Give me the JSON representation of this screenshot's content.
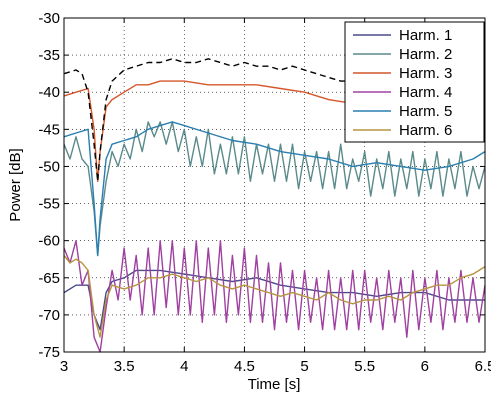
{
  "chart_data": {
    "type": "line",
    "title": "",
    "xlabel": "Time [s]",
    "ylabel": "Power [dB]",
    "xlim": [
      3,
      6.5
    ],
    "ylim": [
      -75,
      -30
    ],
    "xticks": [
      3,
      3.5,
      4,
      4.5,
      5,
      5.5,
      6,
      6.5
    ],
    "xtick_labels": [
      "3",
      "3.5",
      "4",
      "4.5",
      "5",
      "5.5",
      "6",
      "6.5"
    ],
    "yticks": [
      -30,
      -35,
      -40,
      -45,
      -50,
      -55,
      -60,
      -65,
      -70,
      -75
    ],
    "ytick_labels": [
      "-30",
      "-35",
      "-40",
      "-45",
      "-50",
      "-55",
      "-60",
      "-65",
      "-70",
      "-75"
    ],
    "grid": true,
    "legend_position": "top-right",
    "series": [
      {
        "name": "Harm. 1",
        "color": "#4a4a8c",
        "dashed": false,
        "x": [
          3.0,
          3.1,
          3.2,
          3.25,
          3.3,
          3.35,
          3.4,
          3.5,
          3.6,
          3.8,
          4.0,
          4.2,
          4.4,
          4.6,
          4.8,
          5.0,
          5.2,
          5.4,
          5.6,
          5.8,
          6.0,
          6.2,
          6.4,
          6.5
        ],
        "y": [
          -67,
          -66,
          -66,
          -70,
          -72,
          -67,
          -65.5,
          -65,
          -64,
          -64,
          -64.5,
          -65,
          -65.5,
          -65,
          -66,
          -66.5,
          -67,
          -67,
          -67.5,
          -67,
          -67,
          -68,
          -68,
          -68
        ]
      },
      {
        "name": "Harm. 2",
        "color": "#5a8a8a",
        "dashed": false,
        "x": [
          3.0,
          3.05,
          3.1,
          3.15,
          3.2,
          3.25,
          3.28,
          3.3,
          3.35,
          3.4,
          3.45,
          3.5,
          3.55,
          3.6,
          3.65,
          3.7,
          3.75,
          3.8,
          3.85,
          3.9,
          3.95,
          4.0,
          4.05,
          4.1,
          4.15,
          4.2,
          4.25,
          4.3,
          4.35,
          4.4,
          4.45,
          4.5,
          4.55,
          4.6,
          4.65,
          4.7,
          4.75,
          4.8,
          4.85,
          4.9,
          4.95,
          5.0,
          5.05,
          5.1,
          5.15,
          5.2,
          5.25,
          5.3,
          5.35,
          5.4,
          5.45,
          5.5,
          5.55,
          5.6,
          5.65,
          5.7,
          5.75,
          5.8,
          5.85,
          5.9,
          5.95,
          6.0,
          6.05,
          6.1,
          6.15,
          6.2,
          6.25,
          6.3,
          6.35,
          6.4,
          6.45,
          6.5
        ],
        "y": [
          -47,
          -49,
          -46,
          -49,
          -50,
          -56,
          -62,
          -58,
          -52,
          -48,
          -50,
          -47,
          -49,
          -45,
          -48,
          -44,
          -46,
          -44,
          -47,
          -44,
          -48,
          -45,
          -50,
          -46,
          -50,
          -45,
          -51,
          -47,
          -51,
          -46,
          -51,
          -46,
          -52,
          -47,
          -51,
          -47,
          -52,
          -47,
          -52,
          -47,
          -53,
          -48,
          -52,
          -48,
          -53,
          -48,
          -53,
          -47,
          -53,
          -49,
          -52,
          -48,
          -54,
          -49,
          -53,
          -48,
          -54,
          -49,
          -53,
          -48,
          -54,
          -49,
          -53,
          -48,
          -54,
          -49,
          -53,
          -48,
          -54,
          -50,
          -53,
          -50
        ]
      },
      {
        "name": "Harm. 3",
        "color": "#d4572a",
        "dashed": false,
        "x": [
          3.0,
          3.1,
          3.2,
          3.25,
          3.28,
          3.3,
          3.35,
          3.4,
          3.5,
          3.6,
          3.7,
          3.8,
          3.9,
          4.0,
          4.2,
          4.4,
          4.6,
          4.8,
          5.0,
          5.2,
          5.4,
          5.6,
          5.8,
          6.0,
          6.2,
          6.4,
          6.5
        ],
        "y": [
          -40.5,
          -40,
          -39.5,
          -45,
          -52,
          -48,
          -42,
          -41,
          -40,
          -39,
          -39,
          -38.5,
          -38.5,
          -38.5,
          -39,
          -39,
          -39,
          -39.5,
          -40,
          -41,
          -41.5,
          -42,
          -42.5,
          -42.5,
          -43,
          -43.5,
          -43
        ]
      },
      {
        "name": "Harm. 4",
        "color": "#a040a0",
        "dashed": false,
        "x": [
          3.0,
          3.05,
          3.1,
          3.15,
          3.2,
          3.25,
          3.3,
          3.35,
          3.4,
          3.45,
          3.5,
          3.55,
          3.6,
          3.65,
          3.7,
          3.75,
          3.8,
          3.85,
          3.9,
          3.95,
          4.0,
          4.05,
          4.1,
          4.15,
          4.2,
          4.25,
          4.3,
          4.35,
          4.4,
          4.45,
          4.5,
          4.55,
          4.6,
          4.65,
          4.7,
          4.75,
          4.8,
          4.85,
          4.9,
          4.95,
          5.0,
          5.05,
          5.1,
          5.15,
          5.2,
          5.25,
          5.3,
          5.35,
          5.4,
          5.45,
          5.5,
          5.55,
          5.6,
          5.65,
          5.7,
          5.75,
          5.8,
          5.85,
          5.9,
          5.95,
          6.0,
          6.05,
          6.1,
          6.15,
          6.2,
          6.25,
          6.3,
          6.35,
          6.4,
          6.45,
          6.5
        ],
        "y": [
          -61,
          -63,
          -60,
          -66,
          -64,
          -73,
          -75,
          -69,
          -64,
          -68,
          -61,
          -68,
          -62,
          -70,
          -61,
          -70,
          -60,
          -69,
          -60,
          -70,
          -61,
          -70,
          -60,
          -71,
          -61,
          -70,
          -60,
          -71,
          -62,
          -70,
          -61,
          -71,
          -62,
          -71,
          -63,
          -72,
          -63,
          -71,
          -64,
          -72,
          -64,
          -71,
          -65,
          -72,
          -64,
          -72,
          -65,
          -72,
          -64,
          -72,
          -64,
          -71,
          -65,
          -72,
          -64,
          -71,
          -65,
          -73,
          -64,
          -72,
          -65,
          -71,
          -64,
          -72,
          -65,
          -71,
          -64,
          -71,
          -65,
          -71,
          -66
        ]
      },
      {
        "name": "Harm. 5",
        "color": "#2a7fb0",
        "dashed": false,
        "x": [
          3.0,
          3.1,
          3.2,
          3.25,
          3.28,
          3.3,
          3.35,
          3.4,
          3.5,
          3.6,
          3.7,
          3.8,
          3.9,
          4.0,
          4.2,
          4.4,
          4.6,
          4.8,
          5.0,
          5.2,
          5.4,
          5.6,
          5.8,
          6.0,
          6.2,
          6.4,
          6.5
        ],
        "y": [
          -46,
          -45.5,
          -45,
          -55,
          -62,
          -57,
          -49,
          -47,
          -46.5,
          -46,
          -45,
          -44.5,
          -44,
          -44.5,
          -45.5,
          -46.5,
          -47,
          -48,
          -48.5,
          -49,
          -50,
          -49.5,
          -50,
          -50.5,
          -50,
          -49,
          -48
        ]
      },
      {
        "name": "Harm. 6",
        "color": "#b89440",
        "dashed": false,
        "x": [
          3.0,
          3.05,
          3.1,
          3.15,
          3.2,
          3.25,
          3.3,
          3.35,
          3.4,
          3.5,
          3.6,
          3.7,
          3.8,
          3.9,
          4.0,
          4.1,
          4.2,
          4.3,
          4.4,
          4.5,
          4.6,
          4.7,
          4.8,
          4.9,
          5.0,
          5.1,
          5.2,
          5.3,
          5.4,
          5.5,
          5.6,
          5.7,
          5.8,
          5.9,
          6.0,
          6.1,
          6.2,
          6.3,
          6.4,
          6.5
        ],
        "y": [
          -62,
          -63,
          -62.5,
          -63,
          -64,
          -70,
          -73,
          -68,
          -66,
          -66.5,
          -66,
          -65,
          -65,
          -64.5,
          -65,
          -65.5,
          -65,
          -66,
          -66.5,
          -66,
          -66.5,
          -67,
          -67.5,
          -67,
          -67.5,
          -68,
          -67,
          -68,
          -68.5,
          -68,
          -68,
          -67.5,
          -68,
          -67,
          -66.5,
          -66,
          -66,
          -65,
          -64.5,
          -63.5
        ]
      },
      {
        "name": "",
        "color": "#000000",
        "dashed": true,
        "x": [
          3.0,
          3.1,
          3.15,
          3.2,
          3.25,
          3.28,
          3.3,
          3.35,
          3.4,
          3.5,
          3.6,
          3.7,
          3.8,
          3.9,
          4.0,
          4.1,
          4.2,
          4.3,
          4.4,
          4.5,
          4.6,
          4.7,
          4.8,
          4.9,
          5.0,
          5.1,
          5.2,
          5.3,
          5.4,
          5.5,
          5.6,
          5.7,
          5.8,
          5.9,
          6.0,
          6.2,
          6.4,
          6.5
        ],
        "y": [
          -37.5,
          -37,
          -37.5,
          -40,
          -47,
          -52,
          -48,
          -41,
          -38.5,
          -37,
          -36.5,
          -36,
          -36,
          -35.5,
          -36,
          -36,
          -35.5,
          -36,
          -36.5,
          -36,
          -36.5,
          -36.5,
          -37,
          -36.5,
          -37,
          -37.5,
          -38,
          -38.5,
          -38.5,
          -38.5,
          -39,
          -39,
          -39.5,
          -39.5,
          -39.5,
          -40,
          -40.5,
          -40.5
        ]
      }
    ]
  }
}
